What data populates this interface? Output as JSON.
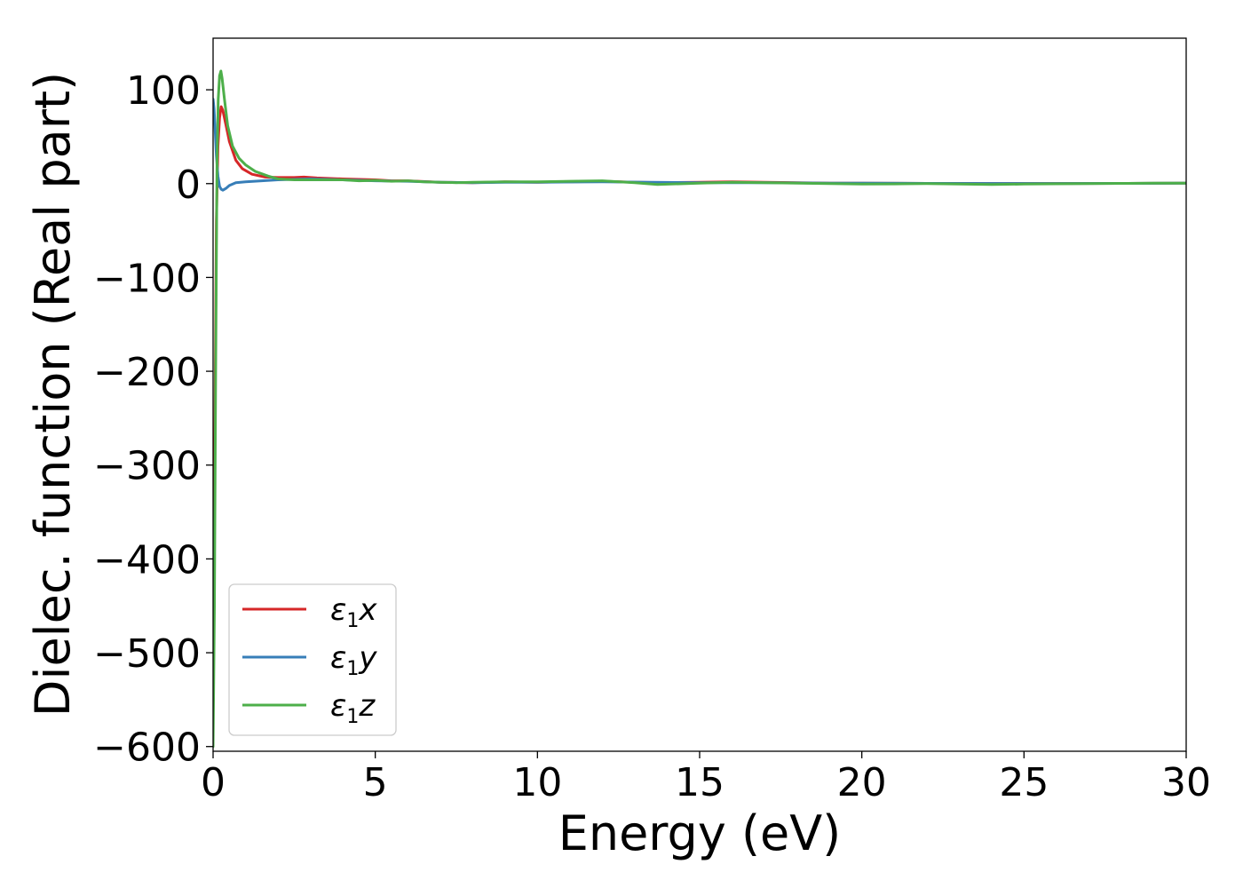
{
  "chart_data": {
    "type": "line",
    "xlabel": "Energy (eV)",
    "ylabel": "Dielec. function (Real part)",
    "xlim": [
      0,
      30
    ],
    "ylim": [
      -605,
      155
    ],
    "xticks": [
      0,
      5,
      10,
      15,
      20,
      25,
      30
    ],
    "yticks": [
      100,
      0,
      -100,
      -200,
      -300,
      -400,
      -500,
      -600
    ],
    "xtick_labels": [
      "0",
      "5",
      "10",
      "15",
      "20",
      "25",
      "30"
    ],
    "ytick_labels": [
      "100",
      "0",
      "−100",
      "−200",
      "−300",
      "−400",
      "−500",
      "−600"
    ],
    "grid": false,
    "legend_position": "lower-left",
    "series": [
      {
        "name": "ε1x",
        "legend": {
          "symbol": "ε",
          "sub": "1",
          "comp": "x"
        },
        "color": "#d62728",
        "x": [
          0,
          0.05,
          0.1,
          0.15,
          0.2,
          0.25,
          0.3,
          0.4,
          0.5,
          0.7,
          0.9,
          1.2,
          1.6,
          2.0,
          2.5,
          2.8,
          3.2,
          4.0,
          5.0,
          5.5,
          6.0,
          7.0,
          8.0,
          9.0,
          10.0,
          11.0,
          12.0,
          13.0,
          14.0,
          15.0,
          16.0,
          17.0,
          18.0,
          19.0,
          20.0,
          22.0,
          24.0,
          26.0,
          28.0,
          30.0
        ],
        "y": [
          -560,
          -300,
          -40,
          40,
          70,
          82,
          78,
          62,
          45,
          25,
          16,
          10,
          7,
          6.5,
          6.5,
          7,
          6,
          5,
          4,
          3,
          3,
          1.5,
          1,
          2,
          1.5,
          2,
          2.5,
          1.5,
          1,
          1.5,
          2,
          1.5,
          1,
          0.5,
          0.5,
          0.3,
          0.2,
          0.2,
          0.3,
          0.5
        ]
      },
      {
        "name": "ε1y",
        "legend": {
          "symbol": "ε",
          "sub": "1",
          "comp": "y"
        },
        "color": "#377eb8",
        "x": [
          0,
          0.03,
          0.06,
          0.1,
          0.15,
          0.2,
          0.25,
          0.3,
          0.4,
          0.5,
          0.7,
          1.0,
          1.5,
          2.0,
          2.5,
          3.0,
          4.0,
          5.0,
          6.0,
          7.0,
          8.0,
          9.0,
          10.0,
          12.0,
          13.5,
          15.0,
          17.0,
          19.0,
          20.0,
          22.0,
          24.0,
          26.0,
          28.0,
          30.0
        ],
        "y": [
          90,
          80,
          60,
          30,
          8,
          -3,
          -6,
          -7,
          -5,
          -2,
          1,
          2,
          3,
          4,
          4.5,
          5,
          4,
          3,
          2.5,
          1.5,
          1,
          1.5,
          1.5,
          2,
          1.5,
          1,
          1,
          0.5,
          0.5,
          0.3,
          0.2,
          0.2,
          0.3,
          0.5
        ]
      },
      {
        "name": "ε1z",
        "legend": {
          "symbol": "ε",
          "sub": "1",
          "comp": "z"
        },
        "color": "#4daf4a",
        "x": [
          0,
          0.04,
          0.08,
          0.12,
          0.16,
          0.2,
          0.24,
          0.28,
          0.35,
          0.45,
          0.6,
          0.8,
          1.0,
          1.3,
          1.7,
          2.0,
          2.5,
          3.0,
          3.5,
          4.0,
          4.5,
          5.0,
          5.5,
          6.0,
          6.5,
          7.0,
          7.5,
          8.0,
          9.0,
          10.0,
          11.0,
          12.0,
          13.0,
          13.7,
          15.0,
          16.0,
          17.0,
          18.0,
          19.0,
          20.0,
          21.0,
          22.0,
          23.0,
          24.0,
          25.0,
          26.0,
          27.0,
          28.0,
          29.0,
          30.0
        ],
        "y": [
          -600,
          -450,
          -200,
          20,
          90,
          115,
          120,
          112,
          90,
          62,
          40,
          27,
          20,
          13,
          8,
          5,
          4,
          4,
          4,
          4,
          3,
          3.5,
          2.5,
          3,
          2,
          1.5,
          1,
          1.5,
          2,
          2,
          2.5,
          3,
          1,
          -1,
          0.5,
          1.5,
          1,
          0.5,
          0,
          -0.5,
          -0.3,
          0,
          -0.5,
          -1,
          -0.5,
          -0.2,
          0,
          0.3,
          0.4,
          0.5
        ]
      }
    ]
  }
}
